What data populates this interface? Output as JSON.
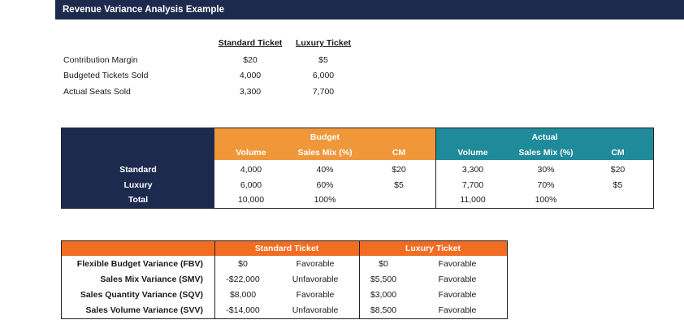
{
  "title": "Revenue Variance Analysis Example",
  "inputs": {
    "headers": [
      "Standard Ticket",
      "Luxury Ticket"
    ],
    "rows": [
      {
        "label": "Contribution Margin",
        "standard": "$20",
        "luxury": "$5"
      },
      {
        "label": "Budgeted Tickets Sold",
        "standard": "4,000",
        "luxury": "6,000"
      },
      {
        "label": "Actual Seats Sold",
        "standard": "3,300",
        "luxury": "7,700"
      }
    ]
  },
  "budget_actual": {
    "budget_title": "Budget",
    "actual_title": "Actual",
    "columns": [
      "Volume",
      "Sales Mix (%)",
      "CM"
    ],
    "rows": [
      {
        "label": "Standard",
        "b_volume": "4,000",
        "b_mix": "40%",
        "b_cm": "$20",
        "a_volume": "3,300",
        "a_mix": "30%",
        "a_cm": "$20"
      },
      {
        "label": "Luxury",
        "b_volume": "6,000",
        "b_mix": "60%",
        "b_cm": "$5",
        "a_volume": "7,700",
        "a_mix": "70%",
        "a_cm": "$5"
      },
      {
        "label": "Total",
        "b_volume": "10,000",
        "b_mix": "100%",
        "b_cm": "",
        "a_volume": "11,000",
        "a_mix": "100%",
        "a_cm": ""
      }
    ]
  },
  "variance": {
    "groups": [
      "Standard Ticket",
      "Luxury Ticket"
    ],
    "rows": [
      {
        "label": "Flexible Budget Variance (FBV)",
        "s_amount": "$0",
        "s_status": "Favorable",
        "l_amount": "$0",
        "l_status": "Favorable"
      },
      {
        "label": "Sales Mix Variance (SMV)",
        "s_amount": "-$22,000",
        "s_status": "Unfavorable",
        "l_amount": "$5,500",
        "l_status": "Favorable"
      },
      {
        "label": "Sales Quantity Variance (SQV)",
        "s_amount": "$8,000",
        "s_status": "Favorable",
        "l_amount": "$3,000",
        "l_status": "Favorable"
      },
      {
        "label": "Sales Volume Variance (SVV)",
        "s_amount": "-$14,000",
        "s_status": "Unfavorable",
        "l_amount": "$8,500",
        "l_status": "Favorable"
      }
    ]
  },
  "colors": {
    "navy": "#1c2a4e",
    "budget_orange": "#f0973a",
    "actual_teal": "#1f8a9a",
    "variance_orange": "#f26c22"
  }
}
